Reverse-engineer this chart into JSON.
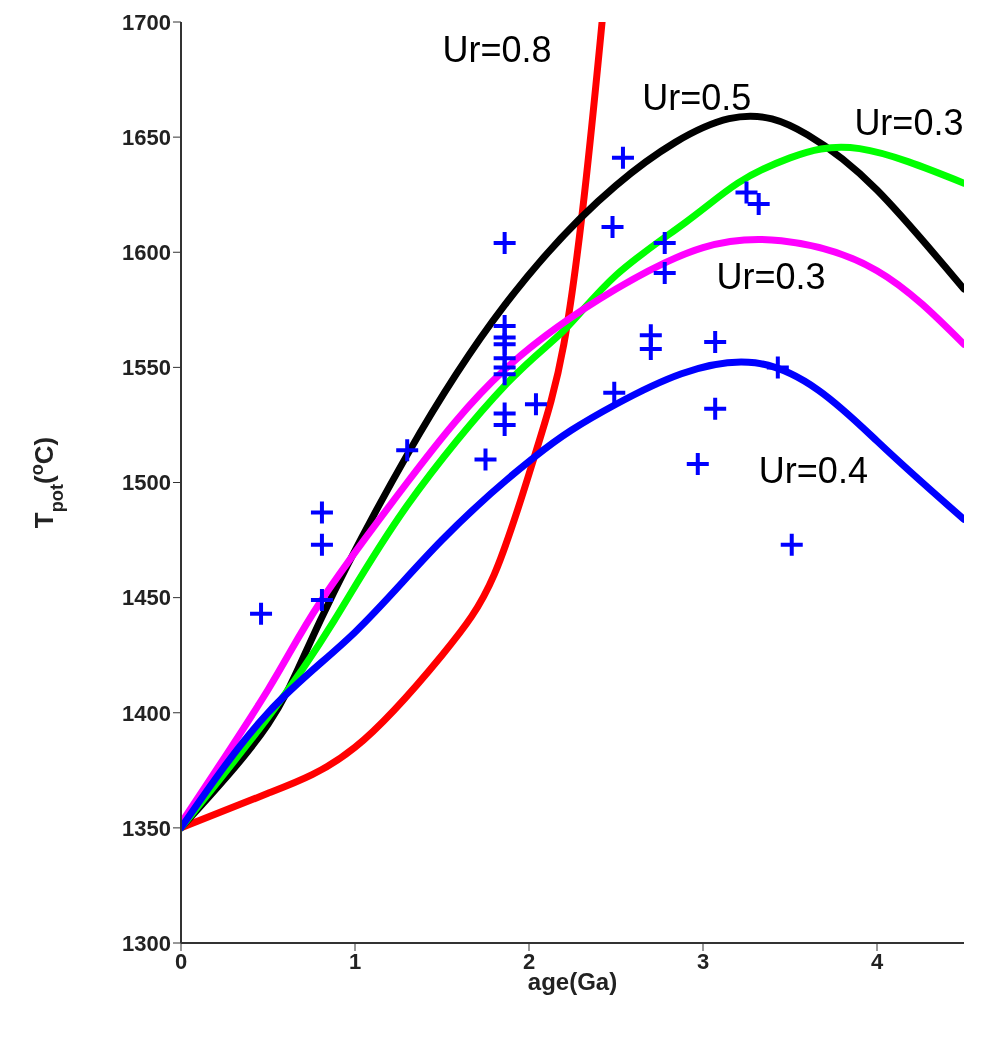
{
  "chart_data": {
    "type": "line",
    "xlabel": "age(Ga)",
    "ylabel": "T$_{pot}$($^{o}$C)",
    "xlim": [
      0,
      4.5
    ],
    "xticks": [
      0,
      1,
      2,
      3,
      4
    ],
    "ylim": [
      1300,
      1700
    ],
    "yticks": [
      1300,
      1350,
      1400,
      1450,
      1500,
      1550,
      1600,
      1650,
      1700
    ],
    "series": [
      {
        "color": "#ff0000",
        "x": [
          0,
          0.5,
          1,
          1.5,
          1.8,
          2.03,
          2.2,
          2.33,
          2.42
        ],
        "values": [
          1350,
          1365,
          1385,
          1425,
          1460,
          1511,
          1560,
          1633,
          1700
        ]
      },
      {
        "color": "#000000",
        "x": [
          0,
          0.5,
          0.8,
          1.3,
          1.86,
          2.5,
          3.15,
          3.6,
          4,
          4.5
        ],
        "values": [
          1350,
          1395,
          1440,
          1512,
          1577,
          1629,
          1658,
          1651,
          1627,
          1584
        ]
      },
      {
        "color": "#00ff00",
        "x": [
          0,
          0.5,
          0.88,
          1.3,
          1.86,
          2.2,
          2.5,
          2.9,
          3.2,
          3.5,
          3.9,
          4.5
        ],
        "values": [
          1350,
          1398,
          1440,
          1490,
          1542,
          1566,
          1590,
          1613,
          1630,
          1641,
          1645,
          1630
        ]
      },
      {
        "color": "#ff00ff",
        "x": [
          0,
          0.5,
          0.8,
          1.3,
          1.86,
          2.5,
          3,
          3.45,
          4,
          4.5
        ],
        "values": [
          1352,
          1410,
          1448,
          1500,
          1549,
          1584,
          1602,
          1605,
          1592,
          1560
        ]
      },
      {
        "color": "#0000ff",
        "x": [
          0,
          0.5,
          1,
          1.5,
          2.03,
          2.5,
          3.3,
          4,
          4.5
        ],
        "values": [
          1350,
          1400,
          1435,
          1475,
          1511,
          1534,
          1552,
          1518,
          1484
        ]
      },
      {
        "type": "scatter",
        "color": "#0000ff",
        "marker": "cross",
        "x": [
          0.46,
          0.81,
          0.81,
          0.81,
          1.3,
          1.75,
          1.86,
          1.86,
          1.86,
          1.86,
          1.86,
          1.86,
          1.86,
          1.86,
          1.86,
          2.04,
          2.48,
          2.49,
          2.54,
          2.7,
          2.7,
          2.78,
          2.78,
          2.97,
          3.07,
          3.07,
          3.25,
          3.32,
          3.43,
          3.51
        ],
        "values": [
          1443,
          1487,
          1473,
          1449,
          1514,
          1510,
          1604,
          1568,
          1563,
          1560,
          1554,
          1550,
          1547,
          1530,
          1525,
          1534,
          1611,
          1539,
          1641,
          1564,
          1558,
          1604,
          1591,
          1508,
          1561,
          1532,
          1626,
          1621,
          1550,
          1473
        ]
      }
    ],
    "annotations": [
      "Ur=0.8",
      "Ur=0.5",
      "Ur=0.3",
      "Ur=0.3",
      "Ur=0.4"
    ]
  }
}
